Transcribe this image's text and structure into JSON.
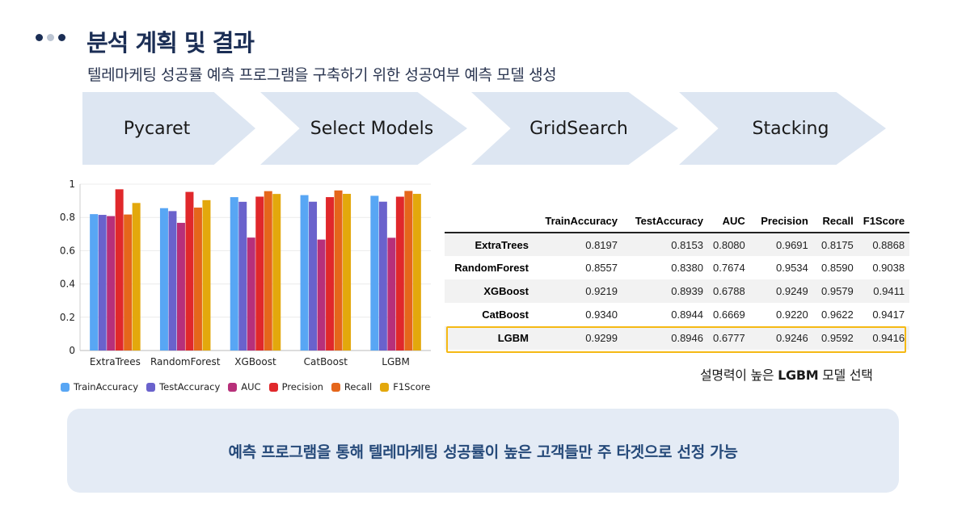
{
  "header": {
    "dots": [
      {
        "color": "#1b2e55"
      },
      {
        "color": "#bcc5d3"
      },
      {
        "color": "#1b2e55"
      }
    ],
    "title": "분석 계획 및 결과",
    "subtitle": "텔레마케팅 성공률 예측 프로그램을 구축하기 위한 성공여부 예측 모델 생성"
  },
  "process_steps": [
    {
      "label": "Pycaret"
    },
    {
      "label": "Select Models"
    },
    {
      "label": "GridSearch"
    },
    {
      "label": "Stacking"
    }
  ],
  "chart_data": {
    "type": "bar",
    "title": "",
    "xlabel": "",
    "ylabel": "",
    "ylim": [
      0,
      1
    ],
    "yticks": [
      "0",
      "0.2",
      "0.4",
      "0.6",
      "0.8",
      "1"
    ],
    "grid": true,
    "legend_position": "bottom",
    "categories": [
      "ExtraTrees",
      "RandomForest",
      "XGBoost",
      "CatBoost",
      "LGBM"
    ],
    "series": [
      {
        "name": "TrainAccuracy",
        "color": "#58a6f4",
        "values": [
          0.8197,
          0.8557,
          0.9219,
          0.934,
          0.9299
        ]
      },
      {
        "name": "TestAccuracy",
        "color": "#6a62cc",
        "values": [
          0.8153,
          0.838,
          0.8939,
          0.8944,
          0.8946
        ]
      },
      {
        "name": "AUC",
        "color": "#b7307a",
        "values": [
          0.808,
          0.7674,
          0.6788,
          0.6669,
          0.6777
        ]
      },
      {
        "name": "Precision",
        "color": "#e0282b",
        "values": [
          0.9691,
          0.9534,
          0.9249,
          0.922,
          0.9246
        ]
      },
      {
        "name": "Recall",
        "color": "#e5661b",
        "values": [
          0.8175,
          0.859,
          0.9579,
          0.9622,
          0.9592
        ]
      },
      {
        "name": "F1Score",
        "color": "#e3a80c",
        "values": [
          0.8868,
          0.9038,
          0.9411,
          0.9417,
          0.9416
        ]
      }
    ]
  },
  "results_table": {
    "columns": [
      "",
      "TrainAccuracy",
      "TestAccuracy",
      "AUC",
      "Precision",
      "Recall",
      "F1Score"
    ],
    "rows": [
      {
        "model": "ExtraTrees",
        "values": [
          "0.8197",
          "0.8153",
          "0.8080",
          "0.9691",
          "0.8175",
          "0.8868"
        ]
      },
      {
        "model": "RandomForest",
        "values": [
          "0.8557",
          "0.8380",
          "0.7674",
          "0.9534",
          "0.8590",
          "0.9038"
        ]
      },
      {
        "model": "XGBoost",
        "values": [
          "0.9219",
          "0.8939",
          "0.6788",
          "0.9249",
          "0.9579",
          "0.9411"
        ]
      },
      {
        "model": "CatBoost",
        "values": [
          "0.9340",
          "0.8944",
          "0.6669",
          "0.9220",
          "0.9622",
          "0.9417"
        ]
      },
      {
        "model": "LGBM",
        "values": [
          "0.9299",
          "0.8946",
          "0.6777",
          "0.9246",
          "0.9592",
          "0.9416"
        ]
      }
    ],
    "highlighted_row": "LGBM",
    "highlight_color": "#f5b914"
  },
  "caption": {
    "prefix": "설명력이 높은 ",
    "bold": "LGBM",
    "suffix": " 모델 선택"
  },
  "banner": {
    "text": "예측 프로그램을 통해 텔레마케팅 성공률이 높은 고객들만 주 타겟으로 선정 가능"
  }
}
